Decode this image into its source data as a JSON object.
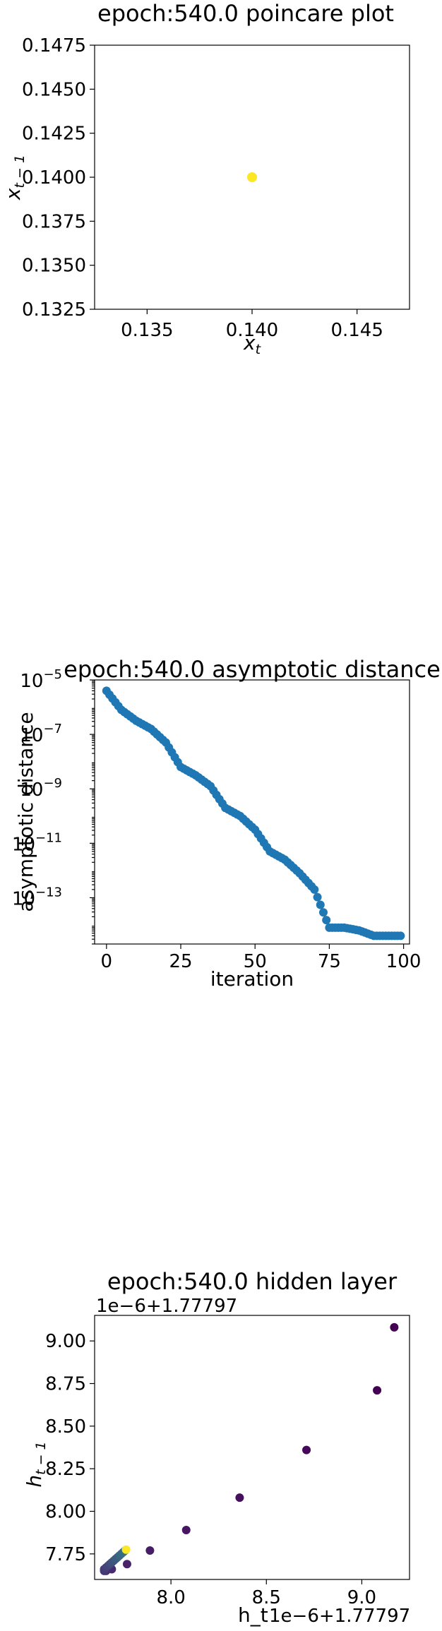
{
  "colors": {
    "blue": "#1f77b4",
    "yellow": "#fde725",
    "purple": "#3e2764",
    "viridis_low": "#440154",
    "viridis_high": "#fde725"
  },
  "chart_data": [
    {
      "type": "scatter",
      "title": "epoch:540.0 poincare plot",
      "xlabel": "x_t",
      "ylabel": "x_{t-1}",
      "xlim": [
        0.1325,
        0.1475
      ],
      "ylim": [
        0.1325,
        0.1475
      ],
      "xticks": [
        "0.135",
        "0.140",
        "0.145"
      ],
      "yticks": [
        "0.1475",
        "0.1450",
        "0.1425",
        "0.1400",
        "0.1375",
        "0.1350",
        "0.1325"
      ],
      "grid": false,
      "points": [
        {
          "x": 0.14,
          "y": 0.14,
          "color": "#fde725"
        }
      ]
    },
    {
      "type": "scatter",
      "title": "epoch:540.0 asymptotic distance",
      "xlabel": "iteration",
      "ylabel": "asymptotic distance",
      "xlim": [
        -4,
        102
      ],
      "yscale": "log",
      "ylim_log10": [
        -14.7,
        -5
      ],
      "xticks": [
        "0",
        "25",
        "50",
        "75",
        "100"
      ],
      "yticks": [
        "10^{-5}",
        "10^{-7}",
        "10^{-9}",
        "10^{-11}",
        "10^{-13}"
      ],
      "grid": false,
      "color": "#1f77b4",
      "log10_values_at_iterations": {
        "x": [
          0,
          5,
          10,
          15,
          20,
          25,
          30,
          35,
          40,
          45,
          50,
          55,
          60,
          65,
          70,
          75,
          80,
          85,
          90,
          95,
          99
        ],
        "log10_y": [
          -5.4,
          -6.1,
          -6.5,
          -6.8,
          -7.3,
          -8.2,
          -8.5,
          -8.9,
          -9.7,
          -10.0,
          -10.5,
          -11.3,
          -11.6,
          -12.1,
          -12.7,
          -14.1,
          -14.1,
          -14.2,
          -14.4,
          -14.4,
          -14.4
        ]
      }
    },
    {
      "type": "scatter",
      "title": "epoch:540.0 hidden layer",
      "xlabel": "h_t",
      "ylabel": "h_{t-1}",
      "x_offset_text": "1e−6+1.77797",
      "y_offset_text": "1e−6+1.77797",
      "xlim": [
        7.6,
        9.25
      ],
      "ylim": [
        7.6,
        9.15
      ],
      "xticks": [
        "8.0",
        "8.5",
        "9.0"
      ],
      "yticks": [
        "9.00",
        "8.75",
        "8.50",
        "8.25",
        "8.00",
        "7.75"
      ],
      "grid": false,
      "points": [
        {
          "x": 9.17,
          "y": 9.08,
          "color": "#440154"
        },
        {
          "x": 9.08,
          "y": 8.71,
          "color": "#440154"
        },
        {
          "x": 8.71,
          "y": 8.36,
          "color": "#45085b"
        },
        {
          "x": 8.36,
          "y": 8.08,
          "color": "#46105f"
        },
        {
          "x": 8.08,
          "y": 7.89,
          "color": "#471663"
        },
        {
          "x": 7.89,
          "y": 7.77,
          "color": "#471d67"
        },
        {
          "x": 7.77,
          "y": 7.69,
          "color": "#48236a"
        },
        {
          "x": 7.69,
          "y": 7.66,
          "color": "#482a6e"
        },
        {
          "x": 7.66,
          "y": 7.65,
          "color": "#483070"
        },
        {
          "x": 7.65,
          "y": 7.65,
          "color": "#473673"
        },
        {
          "x": 7.65,
          "y": 7.66,
          "color": "#463b75"
        },
        {
          "x": 7.66,
          "y": 7.67,
          "color": "#454077"
        },
        {
          "x": 7.67,
          "y": 7.68,
          "color": "#444679"
        },
        {
          "x": 7.68,
          "y": 7.69,
          "color": "#424b7b"
        },
        {
          "x": 7.69,
          "y": 7.7,
          "color": "#41507c"
        },
        {
          "x": 7.7,
          "y": 7.71,
          "color": "#3f557e"
        },
        {
          "x": 7.71,
          "y": 7.72,
          "color": "#3d5a7f"
        },
        {
          "x": 7.72,
          "y": 7.73,
          "color": "#3b5f80"
        },
        {
          "x": 7.73,
          "y": 7.74,
          "color": "#3a6480"
        },
        {
          "x": 7.74,
          "y": 7.75,
          "color": "#386981"
        },
        {
          "x": 7.75,
          "y": 7.76,
          "color": "#366d81"
        },
        {
          "x": 7.76,
          "y": 7.77,
          "color": "#357281"
        },
        {
          "x": 7.765,
          "y": 7.775,
          "color": "#fde725"
        }
      ]
    }
  ]
}
